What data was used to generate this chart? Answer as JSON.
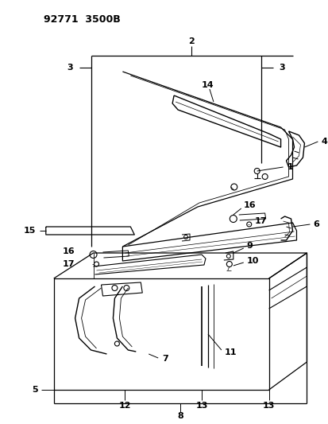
{
  "title": "92771  3500B",
  "bg": "#ffffff",
  "lc": "#000000",
  "figsize": [
    4.14,
    5.33
  ],
  "dpi": 100
}
